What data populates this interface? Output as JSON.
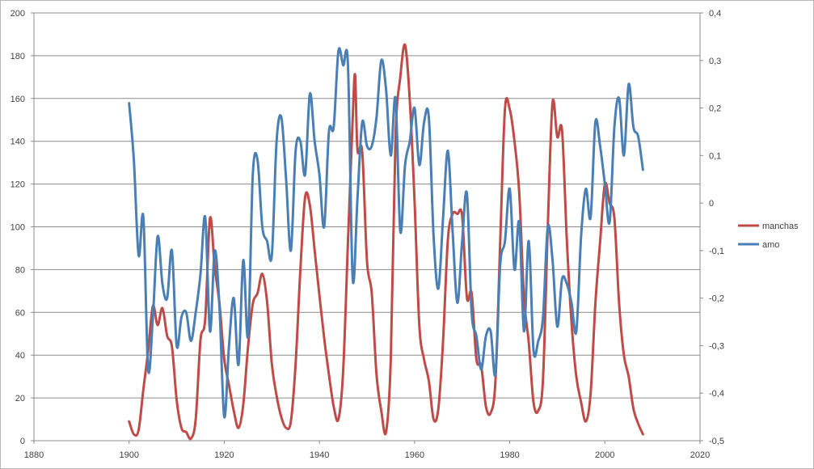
{
  "chart_data": {
    "type": "line",
    "title": "",
    "xlabel": "",
    "ylabel": "",
    "xlim": [
      1880,
      2020
    ],
    "ylim_left": [
      0,
      200
    ],
    "ylim_right": [
      -0.5,
      0.4
    ],
    "x_ticks": [
      "1880",
      "1900",
      "1920",
      "1940",
      "1960",
      "1980",
      "2000",
      "2020"
    ],
    "y_left_ticks": [
      "0",
      "20",
      "40",
      "60",
      "80",
      "100",
      "120",
      "140",
      "160",
      "180",
      "200"
    ],
    "y_right_ticks": [
      "-0,5",
      "-0,4",
      "-0,3",
      "-0,2",
      "-0,1",
      "0",
      "0,1",
      "0,2",
      "0,3",
      "0,4"
    ],
    "grid": "horizontal",
    "legend_position": "right",
    "series": [
      {
        "name": "manchas",
        "axis": "left",
        "color": "#be4b48",
        "points": [
          [
            1900,
            9
          ],
          [
            1901,
            3
          ],
          [
            1902,
            5
          ],
          [
            1903,
            24
          ],
          [
            1904,
            42
          ],
          [
            1905,
            63
          ],
          [
            1906,
            54
          ],
          [
            1907,
            62
          ],
          [
            1908,
            49
          ],
          [
            1909,
            44
          ],
          [
            1910,
            19
          ],
          [
            1911,
            6
          ],
          [
            1912,
            4
          ],
          [
            1913,
            1
          ],
          [
            1914,
            10
          ],
          [
            1915,
            47
          ],
          [
            1916,
            57
          ],
          [
            1917,
            104
          ],
          [
            1918,
            81
          ],
          [
            1919,
            64
          ],
          [
            1920,
            38
          ],
          [
            1921,
            26
          ],
          [
            1922,
            14
          ],
          [
            1923,
            6
          ],
          [
            1924,
            17
          ],
          [
            1925,
            44
          ],
          [
            1926,
            64
          ],
          [
            1927,
            69
          ],
          [
            1928,
            78
          ],
          [
            1929,
            65
          ],
          [
            1930,
            36
          ],
          [
            1931,
            21
          ],
          [
            1932,
            11
          ],
          [
            1933,
            6
          ],
          [
            1934,
            9
          ],
          [
            1935,
            36
          ],
          [
            1936,
            80
          ],
          [
            1937,
            114
          ],
          [
            1938,
            110
          ],
          [
            1939,
            89
          ],
          [
            1940,
            68
          ],
          [
            1941,
            48
          ],
          [
            1942,
            31
          ],
          [
            1943,
            16
          ],
          [
            1944,
            10
          ],
          [
            1945,
            33
          ],
          [
            1946,
            93
          ],
          [
            1947,
            151
          ],
          [
            1947.5,
            171
          ],
          [
            1948,
            136
          ],
          [
            1949,
            135
          ],
          [
            1950,
            84
          ],
          [
            1951,
            69
          ],
          [
            1952,
            31
          ],
          [
            1953,
            14
          ],
          [
            1954,
            4
          ],
          [
            1955,
            38
          ],
          [
            1956,
            142
          ],
          [
            1957,
            170
          ],
          [
            1958,
            185
          ],
          [
            1959,
            159
          ],
          [
            1960,
            112
          ],
          [
            1961,
            54
          ],
          [
            1962,
            38
          ],
          [
            1963,
            28
          ],
          [
            1964,
            10
          ],
          [
            1965,
            15
          ],
          [
            1966,
            47
          ],
          [
            1967,
            94
          ],
          [
            1968,
            106
          ],
          [
            1969,
            106
          ],
          [
            1970,
            105
          ],
          [
            1971,
            67
          ],
          [
            1972,
            69
          ],
          [
            1973,
            38
          ],
          [
            1974,
            35
          ],
          [
            1975,
            16
          ],
          [
            1976,
            13
          ],
          [
            1977,
            28
          ],
          [
            1978,
            93
          ],
          [
            1979,
            155
          ],
          [
            1980,
            155
          ],
          [
            1981,
            140
          ],
          [
            1982,
            116
          ],
          [
            1983,
            67
          ],
          [
            1984,
            46
          ],
          [
            1985,
            18
          ],
          [
            1986,
            14
          ],
          [
            1987,
            29
          ],
          [
            1988,
            100
          ],
          [
            1989,
            158
          ],
          [
            1990,
            142
          ],
          [
            1991,
            145
          ],
          [
            1992,
            94
          ],
          [
            1993,
            55
          ],
          [
            1994,
            30
          ],
          [
            1995,
            18
          ],
          [
            1996,
            9
          ],
          [
            1997,
            22
          ],
          [
            1998,
            64
          ],
          [
            1999,
            93
          ],
          [
            2000,
            120
          ],
          [
            2001,
            111
          ],
          [
            2002,
            104
          ],
          [
            2003,
            64
          ],
          [
            2004,
            40
          ],
          [
            2005,
            30
          ],
          [
            2006,
            15
          ],
          [
            2007,
            8
          ],
          [
            2008,
            3
          ]
        ]
      },
      {
        "name": "amo",
        "axis": "right",
        "color": "#4a7fb5",
        "points": [
          [
            1900,
            0.21
          ],
          [
            1901,
            0.09
          ],
          [
            1902,
            -0.11
          ],
          [
            1903,
            -0.03
          ],
          [
            1904,
            -0.35
          ],
          [
            1905,
            -0.24
          ],
          [
            1906,
            -0.07
          ],
          [
            1907,
            -0.17
          ],
          [
            1908,
            -0.2
          ],
          [
            1909,
            -0.1
          ],
          [
            1910,
            -0.3
          ],
          [
            1911,
            -0.24
          ],
          [
            1912,
            -0.23
          ],
          [
            1913,
            -0.29
          ],
          [
            1914,
            -0.23
          ],
          [
            1915,
            -0.15
          ],
          [
            1916,
            -0.03
          ],
          [
            1917,
            -0.27
          ],
          [
            1918,
            -0.1
          ],
          [
            1919,
            -0.22
          ],
          [
            1920,
            -0.45
          ],
          [
            1921,
            -0.3
          ],
          [
            1922,
            -0.2
          ],
          [
            1923,
            -0.34
          ],
          [
            1924,
            -0.12
          ],
          [
            1925,
            -0.28
          ],
          [
            1926,
            0.06
          ],
          [
            1927,
            0.09
          ],
          [
            1928,
            -0.05
          ],
          [
            1929,
            -0.08
          ],
          [
            1930,
            -0.11
          ],
          [
            1931,
            0.13
          ],
          [
            1932,
            0.18
          ],
          [
            1933,
            0.05
          ],
          [
            1934,
            -0.1
          ],
          [
            1935,
            0.11
          ],
          [
            1936,
            0.13
          ],
          [
            1937,
            0.06
          ],
          [
            1938,
            0.23
          ],
          [
            1939,
            0.13
          ],
          [
            1940,
            0.06
          ],
          [
            1941,
            -0.05
          ],
          [
            1942,
            0.15
          ],
          [
            1943,
            0.16
          ],
          [
            1944,
            0.32
          ],
          [
            1945,
            0.29
          ],
          [
            1946,
            0.29
          ],
          [
            1947,
            -0.16
          ],
          [
            1948,
            0.01
          ],
          [
            1949,
            0.17
          ],
          [
            1950,
            0.12
          ],
          [
            1951,
            0.12
          ],
          [
            1952,
            0.18
          ],
          [
            1953,
            0.3
          ],
          [
            1954,
            0.24
          ],
          [
            1955,
            0.1
          ],
          [
            1956,
            0.22
          ],
          [
            1957,
            -0.06
          ],
          [
            1958,
            0.08
          ],
          [
            1959,
            0.13
          ],
          [
            1960,
            0.2
          ],
          [
            1961,
            0.08
          ],
          [
            1962,
            0.17
          ],
          [
            1963,
            0.18
          ],
          [
            1964,
            -0.07
          ],
          [
            1965,
            -0.18
          ],
          [
            1966,
            -0.03
          ],
          [
            1967,
            0.11
          ],
          [
            1968,
            -0.06
          ],
          [
            1969,
            -0.21
          ],
          [
            1970,
            -0.08
          ],
          [
            1971,
            0.02
          ],
          [
            1972,
            -0.23
          ],
          [
            1973,
            -0.28
          ],
          [
            1974,
            -0.35
          ],
          [
            1975,
            -0.28
          ],
          [
            1976,
            -0.27
          ],
          [
            1977,
            -0.36
          ],
          [
            1978,
            -0.13
          ],
          [
            1979,
            -0.08
          ],
          [
            1980,
            0.03
          ],
          [
            1981,
            -0.14
          ],
          [
            1982,
            -0.04
          ],
          [
            1983,
            -0.27
          ],
          [
            1984,
            -0.08
          ],
          [
            1985,
            -0.31
          ],
          [
            1986,
            -0.29
          ],
          [
            1987,
            -0.24
          ],
          [
            1988,
            -0.05
          ],
          [
            1989,
            -0.12
          ],
          [
            1990,
            -0.26
          ],
          [
            1991,
            -0.16
          ],
          [
            1992,
            -0.17
          ],
          [
            1993,
            -0.21
          ],
          [
            1994,
            -0.27
          ],
          [
            1995,
            -0.07
          ],
          [
            1996,
            0.03
          ],
          [
            1997,
            -0.03
          ],
          [
            1998,
            0.17
          ],
          [
            1999,
            0.12
          ],
          [
            2000,
            0.04
          ],
          [
            2001,
            -0.04
          ],
          [
            2002,
            0.16
          ],
          [
            2003,
            0.22
          ],
          [
            2004,
            0.1
          ],
          [
            2005,
            0.25
          ],
          [
            2006,
            0.16
          ],
          [
            2007,
            0.14
          ],
          [
            2008,
            0.07
          ]
        ]
      }
    ]
  }
}
